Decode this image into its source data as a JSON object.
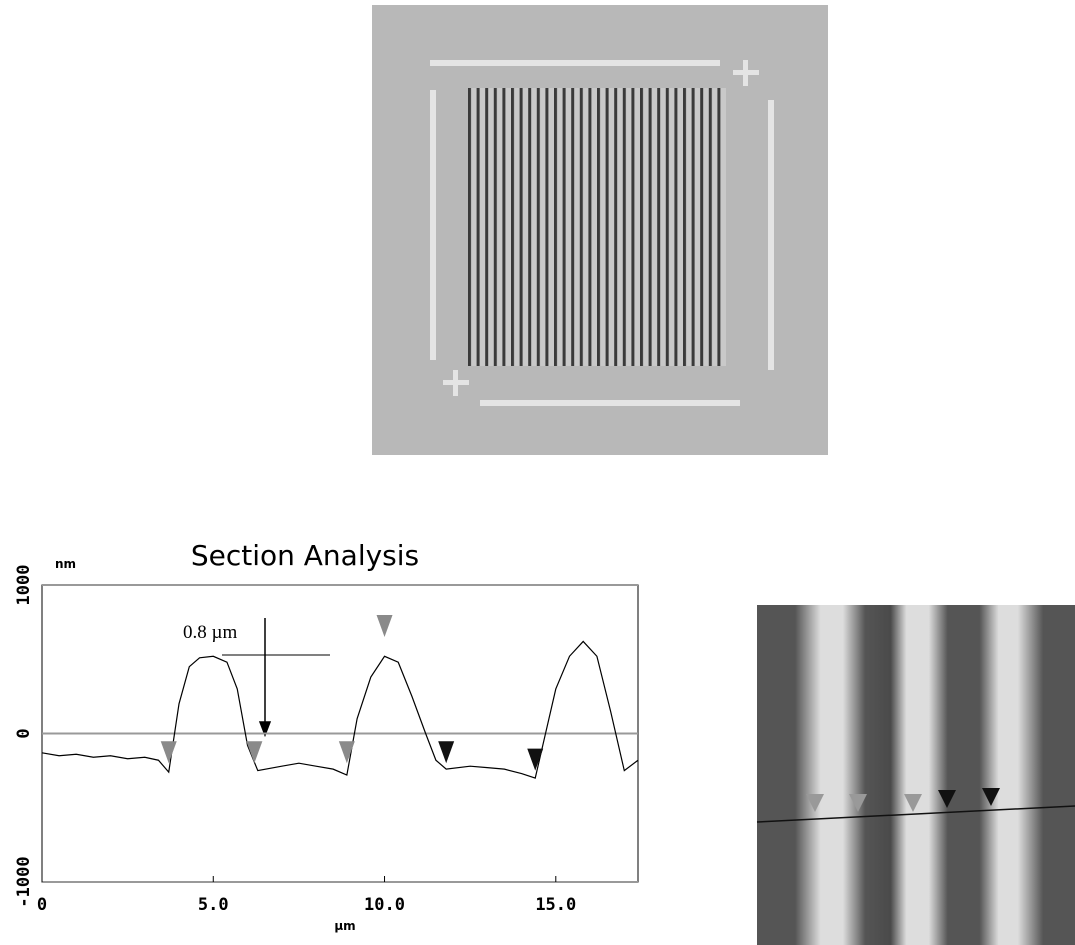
{
  "chart_data": {
    "type": "line",
    "title": "Section Analysis",
    "y_label": "nm",
    "x_label": "µm",
    "annotation": "0.8 µm",
    "x": [
      0,
      0.5,
      1,
      1.5,
      2,
      2.5,
      3,
      3.4,
      3.7,
      4.0,
      4.3,
      4.6,
      5.0,
      5.4,
      5.7,
      6.0,
      6.3,
      7.0,
      7.5,
      8.0,
      8.5,
      8.9,
      9.2,
      9.6,
      10.0,
      10.4,
      10.8,
      11.2,
      11.5,
      11.8,
      12.5,
      13.0,
      13.5,
      14.0,
      14.4,
      14.7,
      15.0,
      15.4,
      15.8,
      16.2,
      16.6,
      17.0,
      17.4
    ],
    "values": [
      -130,
      -150,
      -140,
      -160,
      -150,
      -170,
      -160,
      -180,
      -260,
      200,
      450,
      510,
      520,
      480,
      300,
      -80,
      -250,
      -220,
      -200,
      -220,
      -240,
      -280,
      100,
      380,
      520,
      480,
      250,
      0,
      -180,
      -240,
      -220,
      -230,
      -240,
      -270,
      -300,
      0,
      300,
      520,
      620,
      520,
      150,
      -250,
      -180
    ],
    "color": "#000000",
    "xlim": [
      0,
      17.4
    ],
    "ylim": [
      -1000,
      1000
    ],
    "xticks": [
      0,
      {
        "value": 5,
        "label": "5.0"
      },
      {
        "value": 10,
        "label": "10.0"
      },
      {
        "value": 15,
        "label": "15.0"
      }
    ],
    "yticks": [
      1000,
      0,
      -1000
    ],
    "markers": [
      {
        "x": 3.7,
        "y": -200,
        "color": "#8a8a8a"
      },
      {
        "x": 6.2,
        "y": -200,
        "color": "#8a8a8a"
      },
      {
        "x": 8.9,
        "y": -200,
        "color": "#8a8a8a"
      },
      {
        "x": 10.0,
        "y": 650,
        "color": "#8a8a8a"
      },
      {
        "x": 11.8,
        "y": -200,
        "color": "#111111"
      },
      {
        "x": 14.4,
        "y": -250,
        "color": "#111111"
      }
    ]
  }
}
